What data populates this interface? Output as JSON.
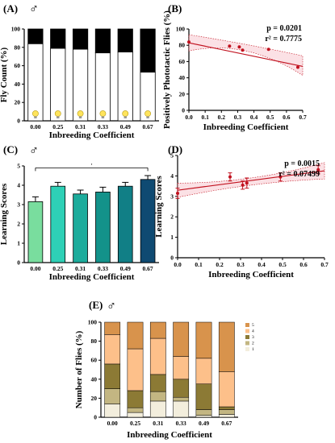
{
  "chart_data": [
    {
      "panel": "(A)",
      "type": "bar",
      "stacked": true,
      "ylabel": "Fly Count (%)",
      "xlabel": "Inbreeding Coefficient",
      "categories": [
        "0.00",
        "0.25",
        "0.31",
        "0.33",
        "0.49",
        "0.67"
      ],
      "ylim": [
        0,
        100
      ],
      "yticks": [
        0,
        20,
        40,
        60,
        80,
        100
      ],
      "series": [
        {
          "values": [
            84,
            79,
            78,
            74,
            75,
            53
          ],
          "color": "#ffffff"
        },
        {
          "values": [
            16,
            21,
            22,
            26,
            25,
            47
          ],
          "color": "#000000"
        }
      ],
      "icon": "light-bulb-icon"
    },
    {
      "panel": "(B)",
      "type": "scatter",
      "ylabel": "Positively Phototactic Flies (%)",
      "xlabel": "Inbreeding Coefficient",
      "xlim": [
        0,
        0.7
      ],
      "ylim": [
        0,
        100
      ],
      "xticks": [
        "0.0",
        "0.1",
        "0.2",
        "0.3",
        "0.4",
        "0.5",
        "0.6",
        "0.7"
      ],
      "yticks": [
        0,
        20,
        40,
        60,
        80,
        100
      ],
      "x": [
        0.0,
        0.25,
        0.31,
        0.33,
        0.49,
        0.67
      ],
      "y": [
        84,
        79,
        78,
        74,
        75,
        53
      ],
      "fit": {
        "x0": 0.0,
        "y0": 83,
        "x1": 0.7,
        "y1": 54
      },
      "band": [
        {
          "x": 0.0,
          "lo": 73,
          "hi": 93
        },
        {
          "x": 0.35,
          "lo": 73,
          "hi": 81
        },
        {
          "x": 0.7,
          "lo": 43,
          "hi": 67
        }
      ],
      "p_text": "p = 0.0201",
      "r2_text": "r² = 0.7775",
      "color": "#c1121f"
    },
    {
      "panel": "(C)",
      "type": "bar",
      "ylabel": "Learning Scores",
      "xlabel": "Inbreeding Coefficient",
      "categories": [
        "0.00",
        "0.25",
        "0.31",
        "0.33",
        "0.49",
        "0.67"
      ],
      "ylim": [
        0,
        5
      ],
      "yticks": [
        0,
        1,
        2,
        3,
        4,
        5
      ],
      "values": [
        3.15,
        3.95,
        3.55,
        3.65,
        3.95,
        4.3
      ],
      "errors": [
        0.25,
        0.2,
        0.2,
        0.25,
        0.2,
        0.2
      ],
      "colors": [
        "#79dd9e",
        "#2ed0b6",
        "#1dac9c",
        "#13928a",
        "#117f86",
        "#0f4a72"
      ],
      "significance": "·"
    },
    {
      "panel": "(D)",
      "type": "scatter",
      "ylabel": "Learning Scores",
      "xlabel": "Inbreeding Coefficient",
      "xlim": [
        0,
        0.7
      ],
      "ylim": [
        0,
        5
      ],
      "xticks": [
        "0.0",
        "0.1",
        "0.2",
        "0.3",
        "0.4",
        "0.5",
        "0.6",
        "0.7"
      ],
      "yticks": [
        0,
        1,
        2,
        3,
        4,
        5
      ],
      "x": [
        0.0,
        0.25,
        0.31,
        0.33,
        0.49,
        0.67
      ],
      "y": [
        3.15,
        3.95,
        3.55,
        3.65,
        3.95,
        4.3
      ],
      "errors": [
        0.25,
        0.2,
        0.2,
        0.25,
        0.2,
        0.2
      ],
      "fit": {
        "x0": 0.0,
        "y0": 3.3,
        "x1": 0.7,
        "y1": 4.25
      },
      "band": [
        {
          "x": 0.0,
          "lo": 2.95,
          "hi": 3.65
        },
        {
          "x": 0.35,
          "lo": 3.55,
          "hi": 3.9
        },
        {
          "x": 0.7,
          "lo": 3.85,
          "hi": 4.65
        }
      ],
      "p_text": "p = 0.0015",
      "r2_text": "r² = 0.07499",
      "color": "#c1121f"
    },
    {
      "panel": "(E)",
      "type": "bar",
      "stacked": true,
      "ylabel": "Number of Flies (%)",
      "xlabel": "Inbreeding Coefficient",
      "categories": [
        "0.00",
        "0.25",
        "0.31",
        "0.33",
        "0.49",
        "0.67"
      ],
      "ylim": [
        0,
        100
      ],
      "yticks": [
        0,
        20,
        40,
        60,
        80,
        100
      ],
      "legend_position": "right",
      "series": [
        {
          "name": "1",
          "values": [
            14,
            5,
            17,
            17,
            2,
            3
          ],
          "color": "#f3eedd"
        },
        {
          "name": "2",
          "values": [
            16,
            5,
            10,
            4,
            6,
            5
          ],
          "color": "#c3b682"
        },
        {
          "name": "3",
          "values": [
            26,
            18,
            18,
            19,
            27,
            3
          ],
          "color": "#8c7a35"
        },
        {
          "name": "4",
          "values": [
            31,
            44,
            38,
            24,
            27,
            37
          ],
          "color": "#fdc08a"
        },
        {
          "name": "5",
          "values": [
            13,
            28,
            17,
            36,
            38,
            52
          ],
          "color": "#d8934c"
        }
      ]
    }
  ],
  "male_symbol": "♂"
}
